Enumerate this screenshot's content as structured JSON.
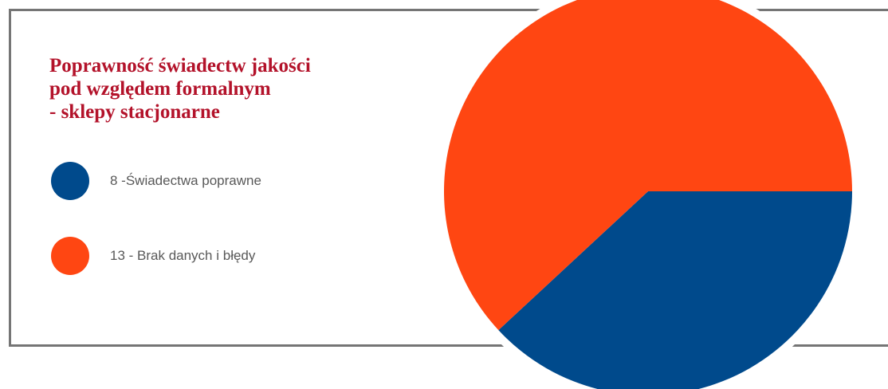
{
  "chart_data": {
    "type": "pie",
    "title_lines": [
      "Poprawność świadectw jakości",
      "pod względem formalnym",
      "- sklepy stacjonarne"
    ],
    "slices": [
      {
        "label": "8 -Świadectwa poprawne",
        "value": 8,
        "color": "#004a8c"
      },
      {
        "label": "13 - Brak danych i błędy",
        "value": 13,
        "color": "#ff4612"
      }
    ],
    "legend_position": "left"
  }
}
